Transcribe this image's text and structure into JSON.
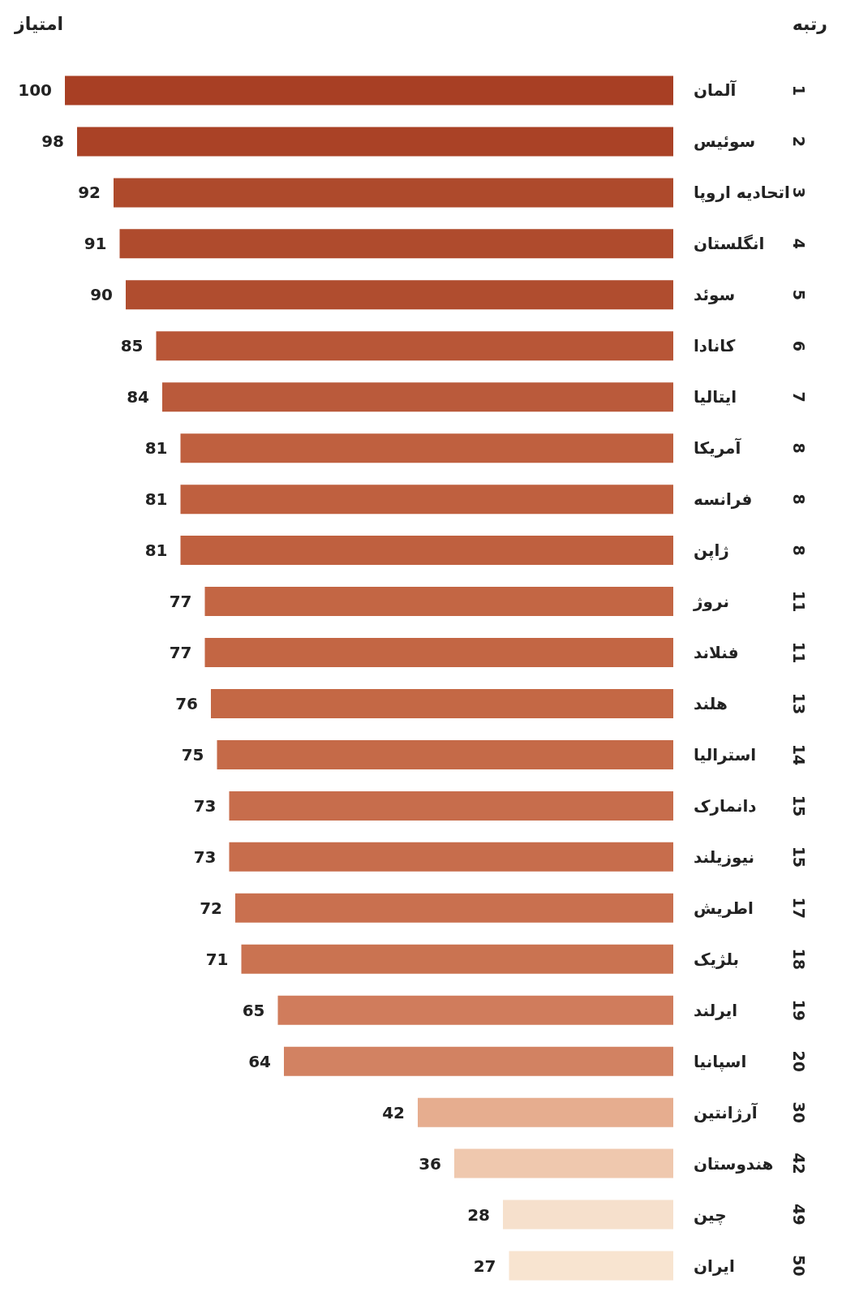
{
  "chart_data": {
    "type": "bar",
    "orientation": "horizontal",
    "xlabel": "امتیاز",
    "ylabel": "رتبه",
    "categories": [
      "آلمان",
      "سوئیس",
      "اتحادیه اروپا",
      "انگلستان",
      "سوئد",
      "کانادا",
      "ایتالیا",
      "آمریکا",
      "فرانسه",
      "ژاپن",
      "نروژ",
      "فنلاند",
      "هلند",
      "استرالیا",
      "دانمارک",
      "نیوزیلند",
      "اطریش",
      "بلژیک",
      "ایرلند",
      "اسپانیا",
      "آرژانتین",
      "هندوستان",
      "چین",
      "ایران"
    ],
    "y2_categories": [
      "1",
      "2",
      "3",
      "4",
      "5",
      "6",
      "7",
      "8",
      "8",
      "8",
      "11",
      "11",
      "13",
      "14",
      "15",
      "15",
      "17",
      "18",
      "19",
      "20",
      "30",
      "42",
      "49",
      "50"
    ],
    "values": [
      100,
      98,
      92,
      91,
      90,
      85,
      84,
      81,
      81,
      81,
      77,
      77,
      76,
      75,
      73,
      73,
      72,
      71,
      65,
      64,
      42,
      36,
      28,
      27
    ],
    "colors": [
      "#a83f24",
      "#aa4226",
      "#ae4a2c",
      "#af4b2d",
      "#b04d2f",
      "#b85637",
      "#ba5a3b",
      "#bf603f",
      "#bf603f",
      "#bf603f",
      "#c36644",
      "#c36644",
      "#c46845",
      "#c56a48",
      "#c76d4c",
      "#c76d4c",
      "#c9704f",
      "#ca7351",
      "#d07c5c",
      "#d28262",
      "#e6ad8f",
      "#efc8ae",
      "#f6e0cc",
      "#f8e4d0"
    ],
    "data_labels": true
  }
}
